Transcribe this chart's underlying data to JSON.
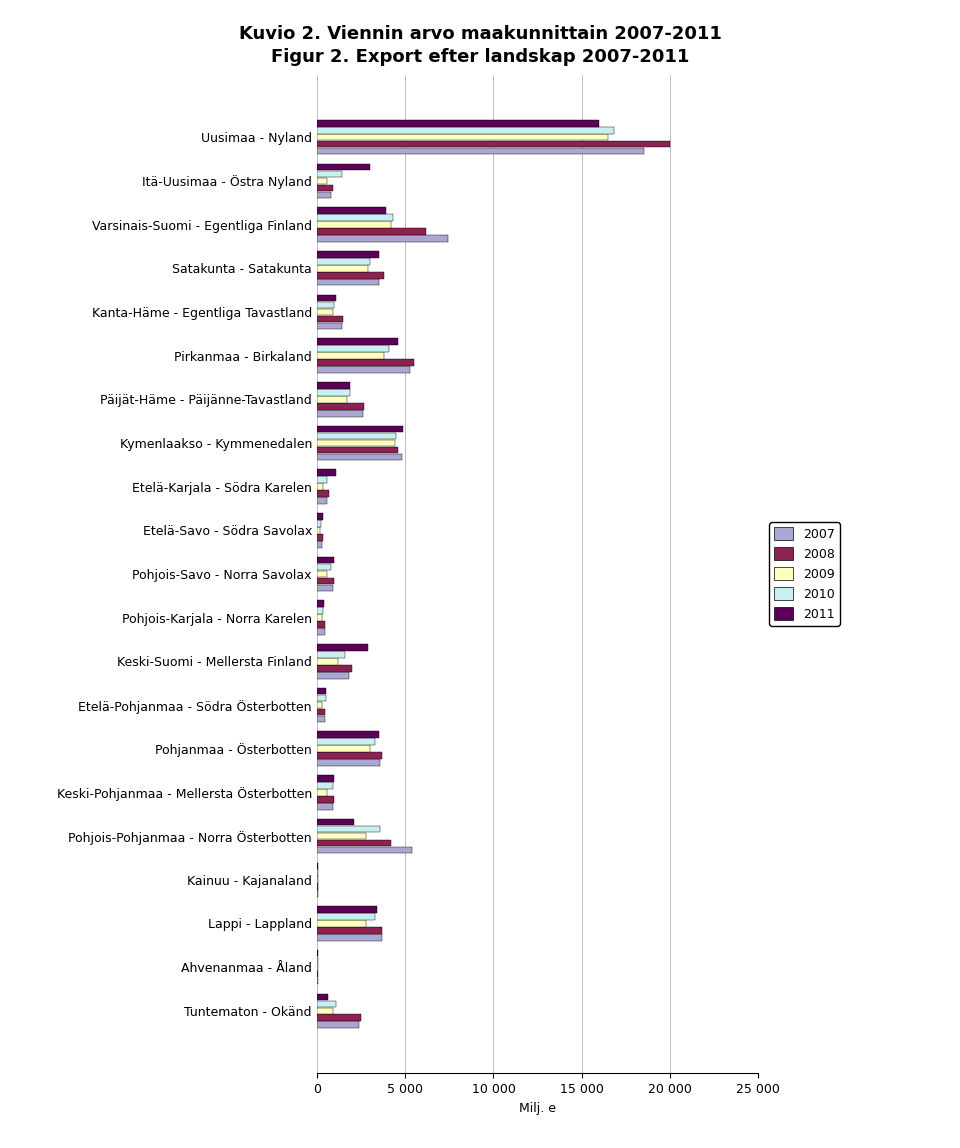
{
  "title_line1": "Kuvio 2. Viennin arvo maakunnittain 2007-2011",
  "title_line2": "Figur 2. Export efter landskap 2007-2011",
  "xlabel": "Milj. e",
  "categories": [
    "Uusimaa - Nyland",
    "Itä-Uusimaa - Östra Nyland",
    "Varsinais-Suomi - Egentliga Finland",
    "Satakunta - Satakunta",
    "Kanta-Häme - Egentliga Tavastland",
    "Pirkanmaa - Birkaland",
    "Päijät-Häme - Päijänne-Tavastland",
    "Kymenlaakso - Kymmenedalen",
    "Etelä-Karjala - Södra Karelen",
    "Etelä-Savo - Södra Savolax",
    "Pohjois-Savo - Norra Savolax",
    "Pohjois-Karjala - Norra Karelen",
    "Keski-Suomi - Mellersta Finland",
    "Etelä-Pohjanmaa - Södra Österbotten",
    "Pohjanmaa - Österbotten",
    "Keski-Pohjanmaa - Mellersta Österbotten",
    "Pohjois-Pohjanmaa - Norra Österbotten",
    "Kainuu - Kajanaland",
    "Lappi - Lappland",
    "Ahvenanmaa - Åland",
    "Tuntematon - Okänd"
  ],
  "series": {
    "2007": [
      18500,
      800,
      7400,
      3500,
      1400,
      5300,
      2600,
      4800,
      600,
      300,
      900,
      450,
      1800,
      450,
      3600,
      900,
      5400,
      80,
      3700,
      80,
      2400
    ],
    "2008": [
      20000,
      900,
      6200,
      3800,
      1500,
      5500,
      2700,
      4600,
      700,
      350,
      1000,
      450,
      2000,
      450,
      3700,
      1000,
      4200,
      90,
      3700,
      90,
      2500
    ],
    "2009": [
      16500,
      550,
      4200,
      2900,
      900,
      3800,
      1700,
      4400,
      350,
      180,
      600,
      300,
      1200,
      270,
      3000,
      600,
      2800,
      60,
      2800,
      70,
      900
    ],
    "2010": [
      16800,
      1400,
      4300,
      3000,
      1000,
      4100,
      1900,
      4500,
      600,
      260,
      800,
      360,
      1600,
      520,
      3300,
      900,
      3600,
      85,
      3300,
      85,
      1100
    ],
    "2011": [
      16000,
      3000,
      3900,
      3500,
      1100,
      4600,
      1900,
      4900,
      1100,
      360,
      1000,
      400,
      2900,
      520,
      3500,
      1000,
      2100,
      90,
      3400,
      90,
      650
    ]
  },
  "colors": {
    "2007": "#A8A8D0",
    "2008": "#8B2252",
    "2009": "#FFFFC0",
    "2010": "#C8F0F0",
    "2011": "#5C0057"
  },
  "xlim": [
    0,
    25000
  ],
  "xticks": [
    0,
    5000,
    10000,
    15000,
    20000,
    25000
  ],
  "xticklabels": [
    "0",
    "5 000",
    "10 000",
    "15 000",
    "20 000",
    "25 000"
  ],
  "legend_years": [
    "2007",
    "2008",
    "2009",
    "2010",
    "2011"
  ],
  "bar_height": 0.16,
  "figsize": [
    9.6,
    11.48
  ],
  "title_fontsize": 13,
  "label_fontsize": 9,
  "tick_fontsize": 9,
  "legend_fontsize": 9
}
